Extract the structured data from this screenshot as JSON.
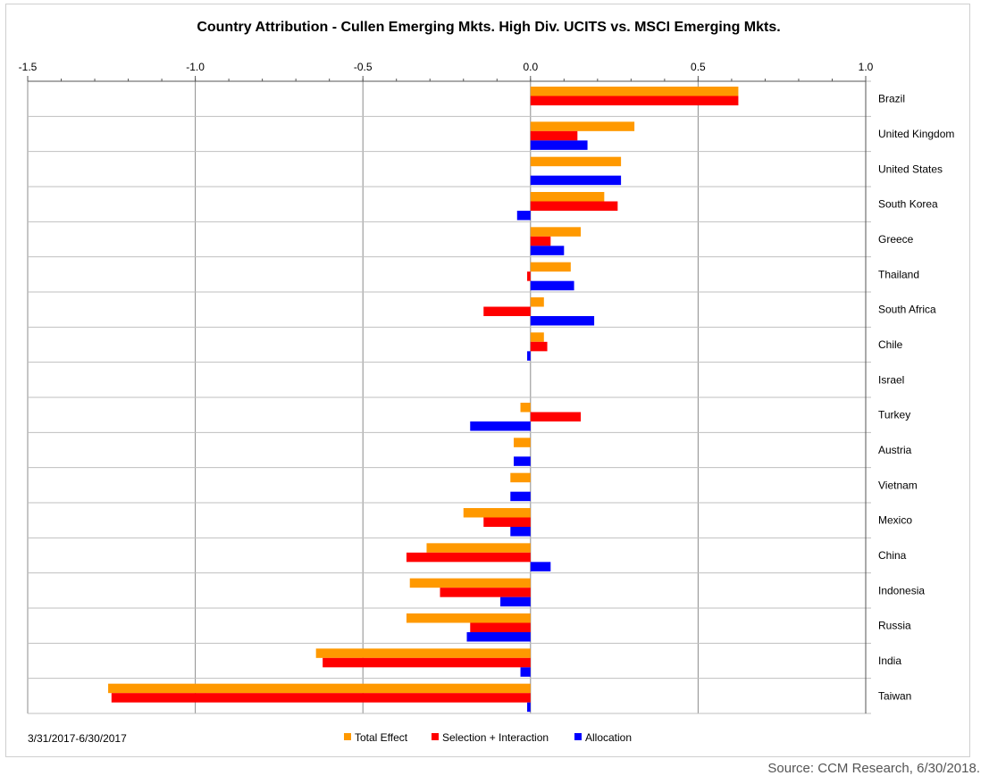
{
  "source_note": "Source: CCM Research, 6/30/2018.",
  "chart_data": {
    "type": "bar",
    "orientation": "horizontal",
    "title": "Country Attribution  - Cullen Emerging Mkts. High Div. UCITS vs. MSCI Emerging Mkts.",
    "period": "3/31/2017-6/30/2017",
    "xlim": [
      -1.5,
      1.0
    ],
    "xticks": [
      "-1.5",
      "-1.0",
      "-0.5",
      "0.0",
      "0.5",
      "1.0"
    ],
    "xtick_values": [
      -1.5,
      -1.0,
      -0.5,
      0.0,
      0.5,
      1.0
    ],
    "grid": "vertical",
    "legend_position": "bottom",
    "categories": [
      "Brazil",
      "United Kingdom",
      "United States",
      "South Korea",
      "Greece",
      "Thailand",
      "South Africa",
      "Chile",
      "Israel",
      "Turkey",
      "Austria",
      "Vietnam",
      "Mexico",
      "China",
      "Indonesia",
      "Russia",
      "India",
      "Taiwan"
    ],
    "series": [
      {
        "name": "Total Effect",
        "color": "#FF9900",
        "values": [
          0.62,
          0.31,
          0.27,
          0.22,
          0.15,
          0.12,
          0.04,
          0.04,
          0.0,
          -0.03,
          -0.05,
          -0.06,
          -0.2,
          -0.31,
          -0.36,
          -0.37,
          -0.64,
          -1.26
        ]
      },
      {
        "name": "Selection + Interaction",
        "color": "#FF0000",
        "values": [
          0.62,
          0.14,
          0.0,
          0.26,
          0.06,
          -0.01,
          -0.14,
          0.05,
          0.0,
          0.15,
          0.0,
          0.0,
          -0.14,
          -0.37,
          -0.27,
          -0.18,
          -0.62,
          -1.25
        ]
      },
      {
        "name": "Allocation",
        "color": "#0000FF",
        "values": [
          0.0,
          0.17,
          0.27,
          -0.04,
          0.1,
          0.13,
          0.19,
          -0.01,
          0.0,
          -0.18,
          -0.05,
          -0.06,
          -0.06,
          0.06,
          -0.09,
          -0.19,
          -0.03,
          -0.01
        ]
      }
    ]
  }
}
